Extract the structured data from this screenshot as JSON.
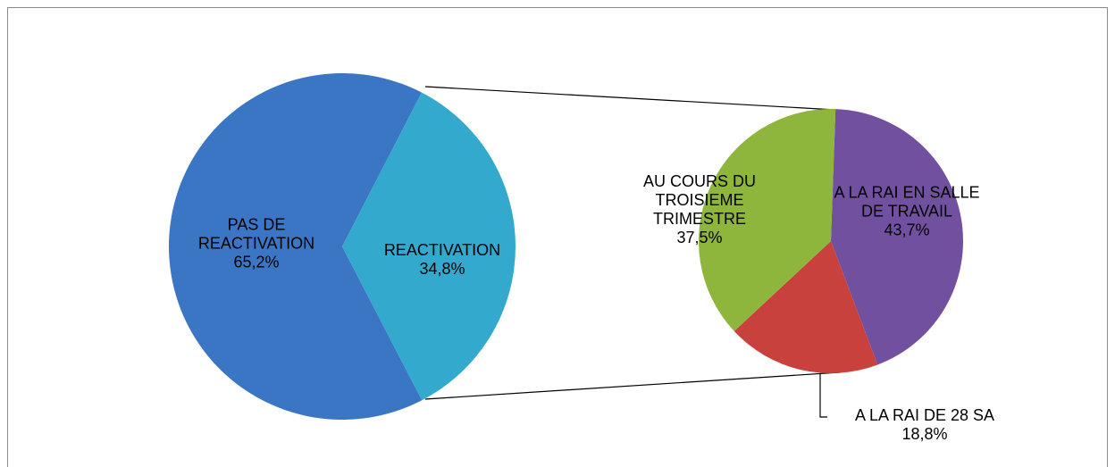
{
  "chart_data": [
    {
      "type": "pie",
      "categories": [
        "PAS DE REACTIVATION",
        "REACTIVATION"
      ],
      "values": [
        65.2,
        34.8
      ],
      "value_labels": [
        "65,2%",
        "34,8%"
      ],
      "colors": [
        "#3b76c4",
        "#33a9cd"
      ]
    },
    {
      "type": "pie",
      "categories": [
        "A LA RAI EN SALLE DE TRAVAIL",
        "A LA RAI DE 28 SA",
        "AU COURS DU TROISIEME TRIMESTRE"
      ],
      "values": [
        43.7,
        18.8,
        37.5
      ],
      "value_labels": [
        "43,7%",
        "18,8%",
        "37,5%"
      ],
      "colors": [
        "#7150a0",
        "#c8413c",
        "#8fb63c"
      ]
    }
  ]
}
